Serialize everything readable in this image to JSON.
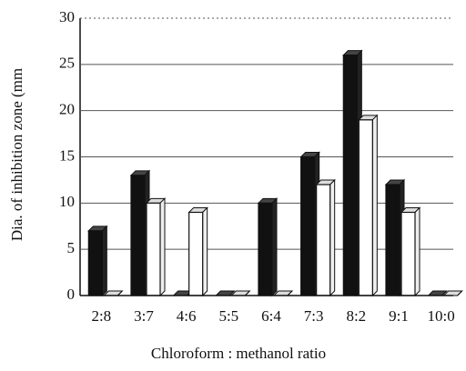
{
  "chart_data": {
    "type": "bar",
    "y_label": "Dia. of inhibition zone (mm",
    "x_label": "Chloroform : methanol  ratio",
    "categories": [
      "2:8",
      "3:7",
      "4:6",
      "5:5",
      "6:4",
      "7:3",
      "8:2",
      "9:1",
      "10:0"
    ],
    "series": [
      {
        "color": "#111111",
        "values": [
          7,
          13,
          0,
          0,
          10,
          15,
          26,
          12,
          0
        ]
      },
      {
        "color": "#ffffff",
        "values": [
          0,
          10,
          9,
          0,
          0,
          12,
          19,
          9,
          0
        ]
      }
    ],
    "ylim": [
      0,
      30
    ],
    "yticks": [
      0,
      5,
      10,
      15,
      20,
      25,
      30
    ],
    "grid": true
  }
}
